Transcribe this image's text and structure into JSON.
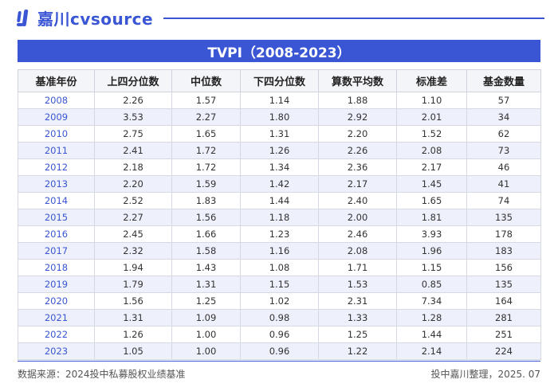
{
  "brand": {
    "name": "嘉川cvsource",
    "color": "#3a56d4"
  },
  "title": "TVPI（2008-2023）",
  "table": {
    "headers": [
      "基准年份",
      "上四分位数",
      "中位数",
      "下四分位数",
      "算数平均数",
      "标准差",
      "基金数量"
    ],
    "rows": [
      [
        "2008",
        "2.26",
        "1.57",
        "1.14",
        "1.88",
        "1.10",
        "57"
      ],
      [
        "2009",
        "3.53",
        "2.27",
        "1.80",
        "2.92",
        "2.01",
        "34"
      ],
      [
        "2010",
        "2.75",
        "1.65",
        "1.31",
        "2.20",
        "1.52",
        "62"
      ],
      [
        "2011",
        "2.41",
        "1.72",
        "1.26",
        "2.26",
        "2.08",
        "73"
      ],
      [
        "2012",
        "2.18",
        "1.72",
        "1.34",
        "2.36",
        "2.17",
        "46"
      ],
      [
        "2013",
        "2.20",
        "1.59",
        "1.42",
        "2.17",
        "1.45",
        "41"
      ],
      [
        "2014",
        "2.52",
        "1.83",
        "1.44",
        "2.40",
        "1.65",
        "74"
      ],
      [
        "2015",
        "2.27",
        "1.56",
        "1.18",
        "2.00",
        "1.81",
        "135"
      ],
      [
        "2016",
        "2.45",
        "1.66",
        "1.23",
        "2.46",
        "3.93",
        "178"
      ],
      [
        "2017",
        "2.32",
        "1.58",
        "1.16",
        "2.08",
        "1.96",
        "183"
      ],
      [
        "2018",
        "1.94",
        "1.43",
        "1.08",
        "1.71",
        "1.15",
        "156"
      ],
      [
        "2019",
        "1.79",
        "1.31",
        "1.15",
        "1.53",
        "0.85",
        "135"
      ],
      [
        "2020",
        "1.56",
        "1.25",
        "1.02",
        "2.31",
        "7.34",
        "164"
      ],
      [
        "2021",
        "1.31",
        "1.09",
        "0.98",
        "1.33",
        "1.28",
        "281"
      ],
      [
        "2022",
        "1.26",
        "1.00",
        "0.96",
        "1.25",
        "1.44",
        "251"
      ],
      [
        "2023",
        "1.05",
        "1.00",
        "0.96",
        "1.22",
        "2.14",
        "224"
      ]
    ]
  },
  "footer": {
    "source": "数据来源：2024投中私募股权业绩基准",
    "credit": "投中嘉川整理，2025. 07"
  }
}
